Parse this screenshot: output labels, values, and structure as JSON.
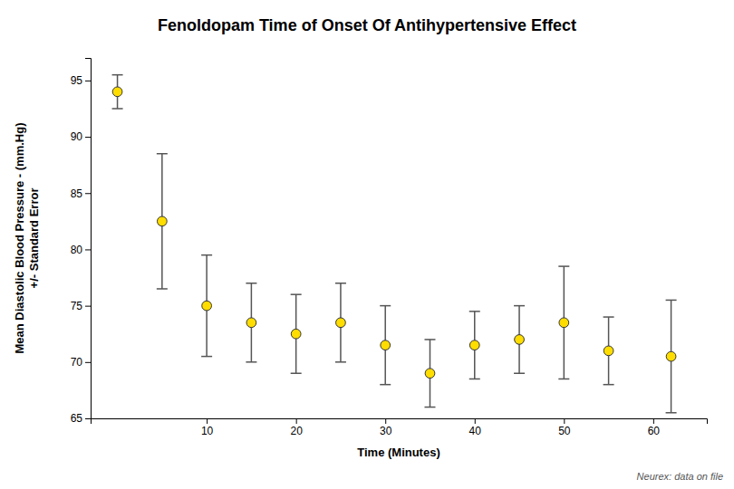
{
  "chart_data": {
    "type": "scatter",
    "title": "Fenoldopam Time of Onset Of Antihypertensive Effect",
    "xlabel": "Time (Minutes)",
    "ylabel": "Mean Diastolic Blood Pressure - (mm.Hg)\n+/- Standard Error",
    "footnote": "Neurex: data on file",
    "x": [
      0,
      5,
      10,
      15,
      20,
      25,
      30,
      35,
      40,
      45,
      50,
      55,
      62
    ],
    "values": [
      94,
      82.5,
      75,
      73.5,
      72.5,
      73.5,
      71.5,
      69,
      71.5,
      72,
      73.5,
      71,
      70.5
    ],
    "yerr": [
      1.5,
      6,
      4.5,
      3.5,
      3.5,
      3.5,
      3.5,
      3,
      3,
      3,
      5,
      3,
      5
    ],
    "xlim": [
      -3,
      66
    ],
    "ylim": [
      65,
      97
    ],
    "xticks": [
      10,
      20,
      30,
      40,
      50,
      60
    ],
    "yticks": [
      65,
      70,
      75,
      80,
      85,
      90,
      95
    ],
    "color": "#ffdd00",
    "marker": "circle",
    "grid": false
  }
}
